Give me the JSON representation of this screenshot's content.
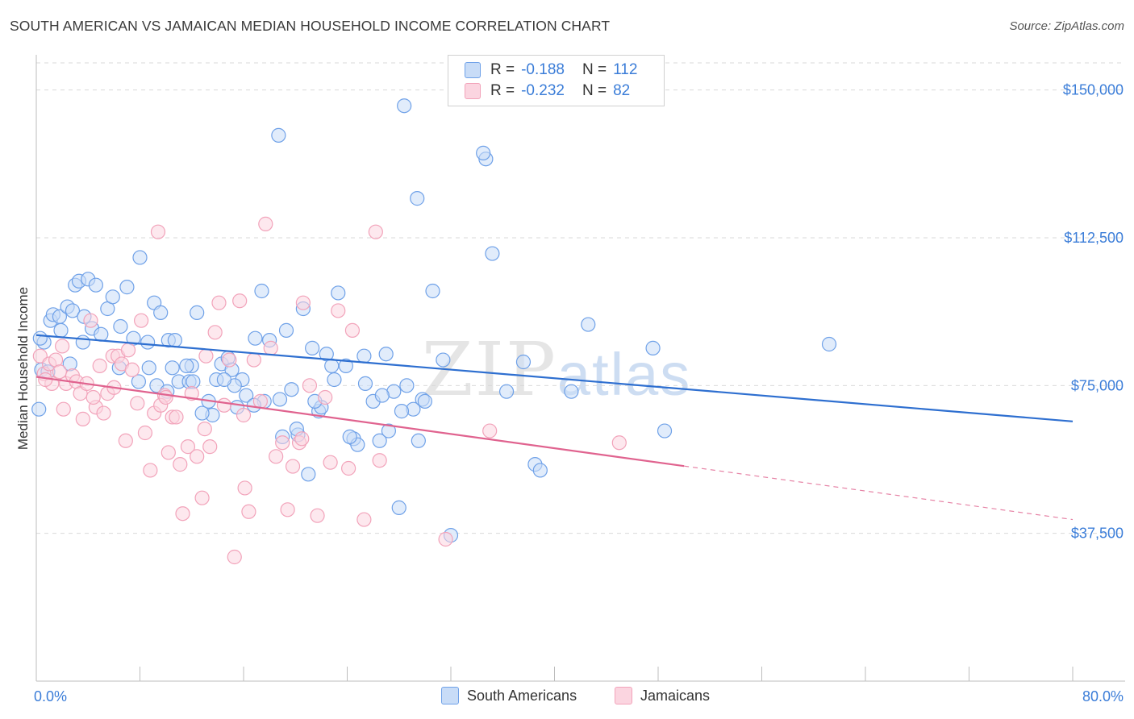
{
  "title": "SOUTH AMERICAN VS JAMAICAN MEDIAN HOUSEHOLD INCOME CORRELATION CHART",
  "source": "Source: ZipAtlas.com",
  "legend": {
    "rows": [
      {
        "r_label": "R =",
        "r_value": "-0.188",
        "n_label": "N =",
        "n_value": "112"
      },
      {
        "r_label": "R =",
        "r_value": "-0.232",
        "n_label": "N =",
        "n_value": "82"
      }
    ]
  },
  "chart_data": {
    "type": "scatter",
    "title": "SOUTH AMERICAN VS JAMAICAN MEDIAN HOUSEHOLD INCOME CORRELATION CHART",
    "xlabel": "",
    "ylabel": "Median Household Income",
    "xlim": [
      0,
      80
    ],
    "ylim": [
      0,
      157500
    ],
    "x_tick_labels": [
      "0.0%",
      "80.0%"
    ],
    "y_ticks": [
      37500,
      75000,
      112500,
      150000
    ],
    "y_tick_labels": [
      "$37,500",
      "$75,000",
      "$112,500",
      "$150,000"
    ],
    "grid": "horizontal dashed",
    "legend_position": "bottom-center",
    "watermark": "ZIPatlas",
    "series": [
      {
        "name": "South Americans",
        "color": "#6fa1e8",
        "trend_color": "#2e6fd0",
        "r": -0.188,
        "n": 112,
        "trend": {
          "x": [
            0,
            80
          ],
          "y": [
            87800,
            65900
          ]
        },
        "points": [
          [
            0.2,
            69000
          ],
          [
            0.4,
            79000
          ],
          [
            0.6,
            86000
          ],
          [
            1.1,
            91500
          ],
          [
            1.3,
            93000
          ],
          [
            1.8,
            92500
          ],
          [
            2.4,
            95000
          ],
          [
            2.8,
            94000
          ],
          [
            3.0,
            100500
          ],
          [
            3.3,
            101500
          ],
          [
            4.0,
            102000
          ],
          [
            4.6,
            100500
          ],
          [
            2.6,
            80500
          ],
          [
            3.7,
            92500
          ],
          [
            4.3,
            89500
          ],
          [
            5.5,
            94500
          ],
          [
            5.9,
            97500
          ],
          [
            6.5,
            90000
          ],
          [
            7.0,
            100000
          ],
          [
            7.5,
            87000
          ],
          [
            8.0,
            107500
          ],
          [
            8.6,
            86000
          ],
          [
            9.1,
            96000
          ],
          [
            9.6,
            93500
          ],
          [
            10.2,
            86500
          ],
          [
            10.7,
            86500
          ],
          [
            11.0,
            76000
          ],
          [
            11.8,
            76000
          ],
          [
            12.0,
            80000
          ],
          [
            12.4,
            93500
          ],
          [
            13.3,
            71000
          ],
          [
            13.6,
            67500
          ],
          [
            14.3,
            80500
          ],
          [
            14.8,
            82000
          ],
          [
            15.1,
            79000
          ],
          [
            15.5,
            69500
          ],
          [
            15.9,
            76500
          ],
          [
            16.2,
            72500
          ],
          [
            16.9,
            87000
          ],
          [
            17.4,
            99000
          ],
          [
            18.0,
            86500
          ],
          [
            18.8,
            71500
          ],
          [
            19.3,
            89000
          ],
          [
            19.7,
            74000
          ],
          [
            20.2,
            62500
          ],
          [
            20.6,
            94500
          ],
          [
            21.0,
            52500
          ],
          [
            21.3,
            84500
          ],
          [
            21.8,
            68500
          ],
          [
            22.4,
            83000
          ],
          [
            22.8,
            80000
          ],
          [
            23.3,
            98500
          ],
          [
            23.9,
            80000
          ],
          [
            24.5,
            61500
          ],
          [
            24.8,
            60000
          ],
          [
            25.4,
            75500
          ],
          [
            26.0,
            71000
          ],
          [
            26.5,
            61000
          ],
          [
            27.0,
            83000
          ],
          [
            27.6,
            73500
          ],
          [
            28.0,
            44000
          ],
          [
            28.6,
            75000
          ],
          [
            29.1,
            69000
          ],
          [
            29.5,
            61000
          ],
          [
            29.8,
            71500
          ],
          [
            30.6,
            99000
          ],
          [
            31.4,
            81500
          ],
          [
            32.0,
            37000
          ],
          [
            22.0,
            69500
          ],
          [
            17.6,
            71000
          ],
          [
            13.9,
            76500
          ],
          [
            9.3,
            75000
          ],
          [
            6.4,
            79500
          ],
          [
            10.5,
            79500
          ],
          [
            8.7,
            79500
          ],
          [
            12.1,
            76000
          ],
          [
            15.3,
            75000
          ],
          [
            11.6,
            80000
          ],
          [
            30.0,
            71000
          ],
          [
            34.7,
            132500
          ],
          [
            34.5,
            134000
          ],
          [
            35.2,
            108500
          ],
          [
            36.3,
            73500
          ],
          [
            37.6,
            81000
          ],
          [
            38.5,
            55000
          ],
          [
            38.9,
            53500
          ],
          [
            41.3,
            73500
          ],
          [
            42.6,
            90500
          ],
          [
            47.6,
            84500
          ],
          [
            48.5,
            63500
          ],
          [
            61.2,
            85500
          ],
          [
            28.4,
            146000
          ],
          [
            29.4,
            122500
          ],
          [
            18.7,
            138500
          ],
          [
            23.0,
            76500
          ],
          [
            26.7,
            72500
          ],
          [
            28.2,
            68500
          ],
          [
            25.3,
            82500
          ],
          [
            20.1,
            64000
          ],
          [
            16.8,
            70000
          ],
          [
            14.5,
            76500
          ],
          [
            12.8,
            68000
          ],
          [
            10.1,
            73500
          ],
          [
            7.9,
            76000
          ],
          [
            5.0,
            88000
          ],
          [
            3.6,
            86000
          ],
          [
            1.9,
            89000
          ],
          [
            0.9,
            78500
          ],
          [
            0.3,
            87000
          ],
          [
            19.0,
            62000
          ],
          [
            27.2,
            63500
          ],
          [
            24.2,
            62000
          ],
          [
            21.5,
            71000
          ]
        ]
      },
      {
        "name": "Jamaicans",
        "color": "#f2a3ba",
        "trend_color": "#e0638f",
        "r": -0.232,
        "n": 82,
        "trend": {
          "x": [
            0,
            80
          ],
          "y": [
            77200,
            41000
          ]
        },
        "trend_solid_to_x": 50,
        "points": [
          [
            0.3,
            82500
          ],
          [
            0.6,
            78000
          ],
          [
            1.0,
            80500
          ],
          [
            1.5,
            81500
          ],
          [
            1.8,
            78500
          ],
          [
            2.0,
            85000
          ],
          [
            2.3,
            75500
          ],
          [
            2.8,
            77500
          ],
          [
            3.1,
            76000
          ],
          [
            3.4,
            73000
          ],
          [
            3.6,
            66500
          ],
          [
            3.9,
            75500
          ],
          [
            4.2,
            91500
          ],
          [
            4.6,
            69500
          ],
          [
            4.9,
            80000
          ],
          [
            5.2,
            68000
          ],
          [
            5.5,
            73000
          ],
          [
            5.9,
            82500
          ],
          [
            6.3,
            82500
          ],
          [
            6.6,
            80500
          ],
          [
            6.9,
            61000
          ],
          [
            7.4,
            79000
          ],
          [
            7.8,
            70500
          ],
          [
            8.1,
            91500
          ],
          [
            8.4,
            63000
          ],
          [
            8.8,
            53500
          ],
          [
            9.1,
            68000
          ],
          [
            9.4,
            114000
          ],
          [
            9.9,
            72500
          ],
          [
            10.2,
            58000
          ],
          [
            10.5,
            67000
          ],
          [
            10.8,
            67000
          ],
          [
            11.1,
            55000
          ],
          [
            11.3,
            42500
          ],
          [
            11.7,
            59500
          ],
          [
            12.0,
            73000
          ],
          [
            12.4,
            57000
          ],
          [
            12.8,
            46500
          ],
          [
            13.1,
            82500
          ],
          [
            13.4,
            59500
          ],
          [
            13.8,
            88500
          ],
          [
            14.1,
            96000
          ],
          [
            14.5,
            70000
          ],
          [
            14.9,
            81500
          ],
          [
            15.3,
            31500
          ],
          [
            15.7,
            96500
          ],
          [
            16.1,
            49000
          ],
          [
            16.4,
            43000
          ],
          [
            16.8,
            81500
          ],
          [
            17.3,
            71000
          ],
          [
            17.7,
            116000
          ],
          [
            18.1,
            84500
          ],
          [
            18.5,
            57000
          ],
          [
            19.0,
            60500
          ],
          [
            19.4,
            43500
          ],
          [
            19.8,
            54500
          ],
          [
            20.3,
            60500
          ],
          [
            20.6,
            96000
          ],
          [
            21.1,
            75000
          ],
          [
            21.7,
            42000
          ],
          [
            22.3,
            72000
          ],
          [
            22.7,
            55500
          ],
          [
            23.3,
            94000
          ],
          [
            24.1,
            54000
          ],
          [
            24.4,
            89000
          ],
          [
            25.3,
            41000
          ],
          [
            26.2,
            114000
          ],
          [
            26.5,
            56000
          ],
          [
            31.6,
            36000
          ],
          [
            35.0,
            63500
          ],
          [
            45.0,
            60500
          ],
          [
            1.2,
            75500
          ],
          [
            2.1,
            69000
          ],
          [
            4.4,
            72000
          ],
          [
            0.7,
            76500
          ],
          [
            6.0,
            74500
          ],
          [
            9.6,
            70000
          ],
          [
            13.0,
            64000
          ],
          [
            16.0,
            67500
          ],
          [
            20.5,
            61500
          ],
          [
            7.1,
            84000
          ],
          [
            10.0,
            72000
          ]
        ]
      }
    ]
  }
}
